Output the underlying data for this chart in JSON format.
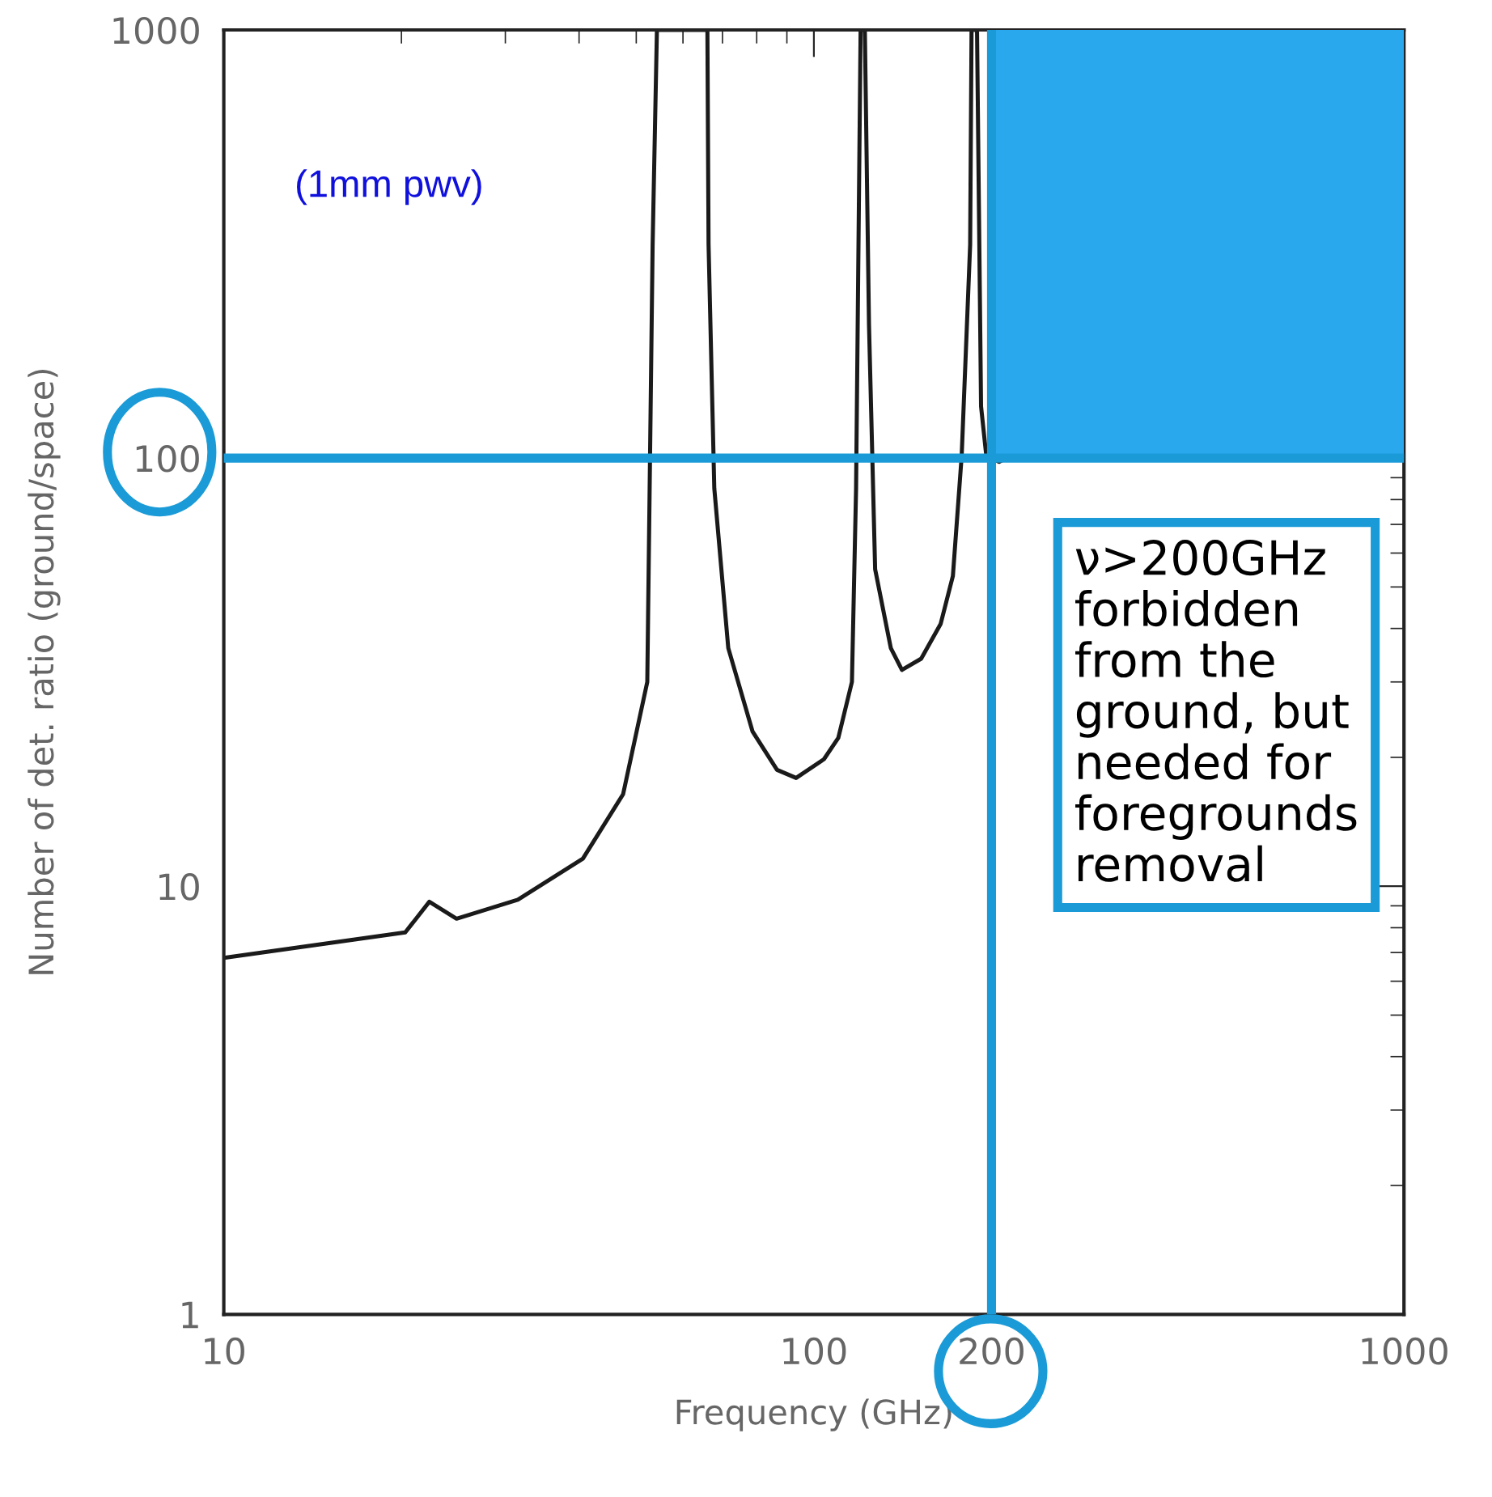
{
  "chart_data": {
    "type": "line",
    "xlabel": "Frequency (GHz)",
    "ylabel": "Number of det. ratio (ground/space)",
    "log": "xy",
    "xlim": [
      10,
      1000
    ],
    "ylim": [
      1,
      1000
    ],
    "xticks": [
      10,
      100,
      200,
      1000
    ],
    "yticks": [
      1,
      10,
      100,
      1000
    ],
    "grid": false,
    "marker": "none",
    "line_style": "solid",
    "x": [
      10,
      20.3,
      22.3,
      24.8,
      31.5,
      40.6,
      47.5,
      52.2,
      53.3,
      54.2,
      66.0,
      66.3,
      67.8,
      71.6,
      78.7,
      86.6,
      93.3,
      104,
      110,
      116,
      117.9,
      120,
      122,
      124,
      127,
      135,
      141,
      152,
      164,
      172,
      178,
      184,
      185,
      189,
      192,
      196,
      206,
      212
    ],
    "series": [
      {
        "color": "#1a1a1a",
        "values": [
          6.8,
          7.8,
          9.2,
          8.4,
          9.3,
          11.6,
          16.4,
          30,
          315,
          1000,
          1000,
          315,
          85,
          36,
          23,
          18.7,
          17.9,
          19.8,
          22.2,
          30,
          85,
          1000,
          1000,
          204,
          55,
          36,
          32,
          34,
          41,
          53,
          101,
          315,
          1000,
          1000,
          132,
          101,
          98,
          100
        ]
      }
    ],
    "ref_lines": [
      {
        "axis": "y",
        "value": 100,
        "color": "#1a9bd7",
        "line_style": "solid"
      },
      {
        "axis": "x",
        "value": 200,
        "color": "#1a9bd7",
        "line_style": "solid"
      }
    ],
    "bands": [
      {
        "axis": "x",
        "from": 200,
        "to": 1000,
        "color": "#2aa8ee"
      }
    ],
    "annotations": [
      "(1mm pwv)",
      "ν>200GHz\nforbidden\nfrom the\nground, but\nneeded for\nforegrounds\nremoval"
    ]
  }
}
